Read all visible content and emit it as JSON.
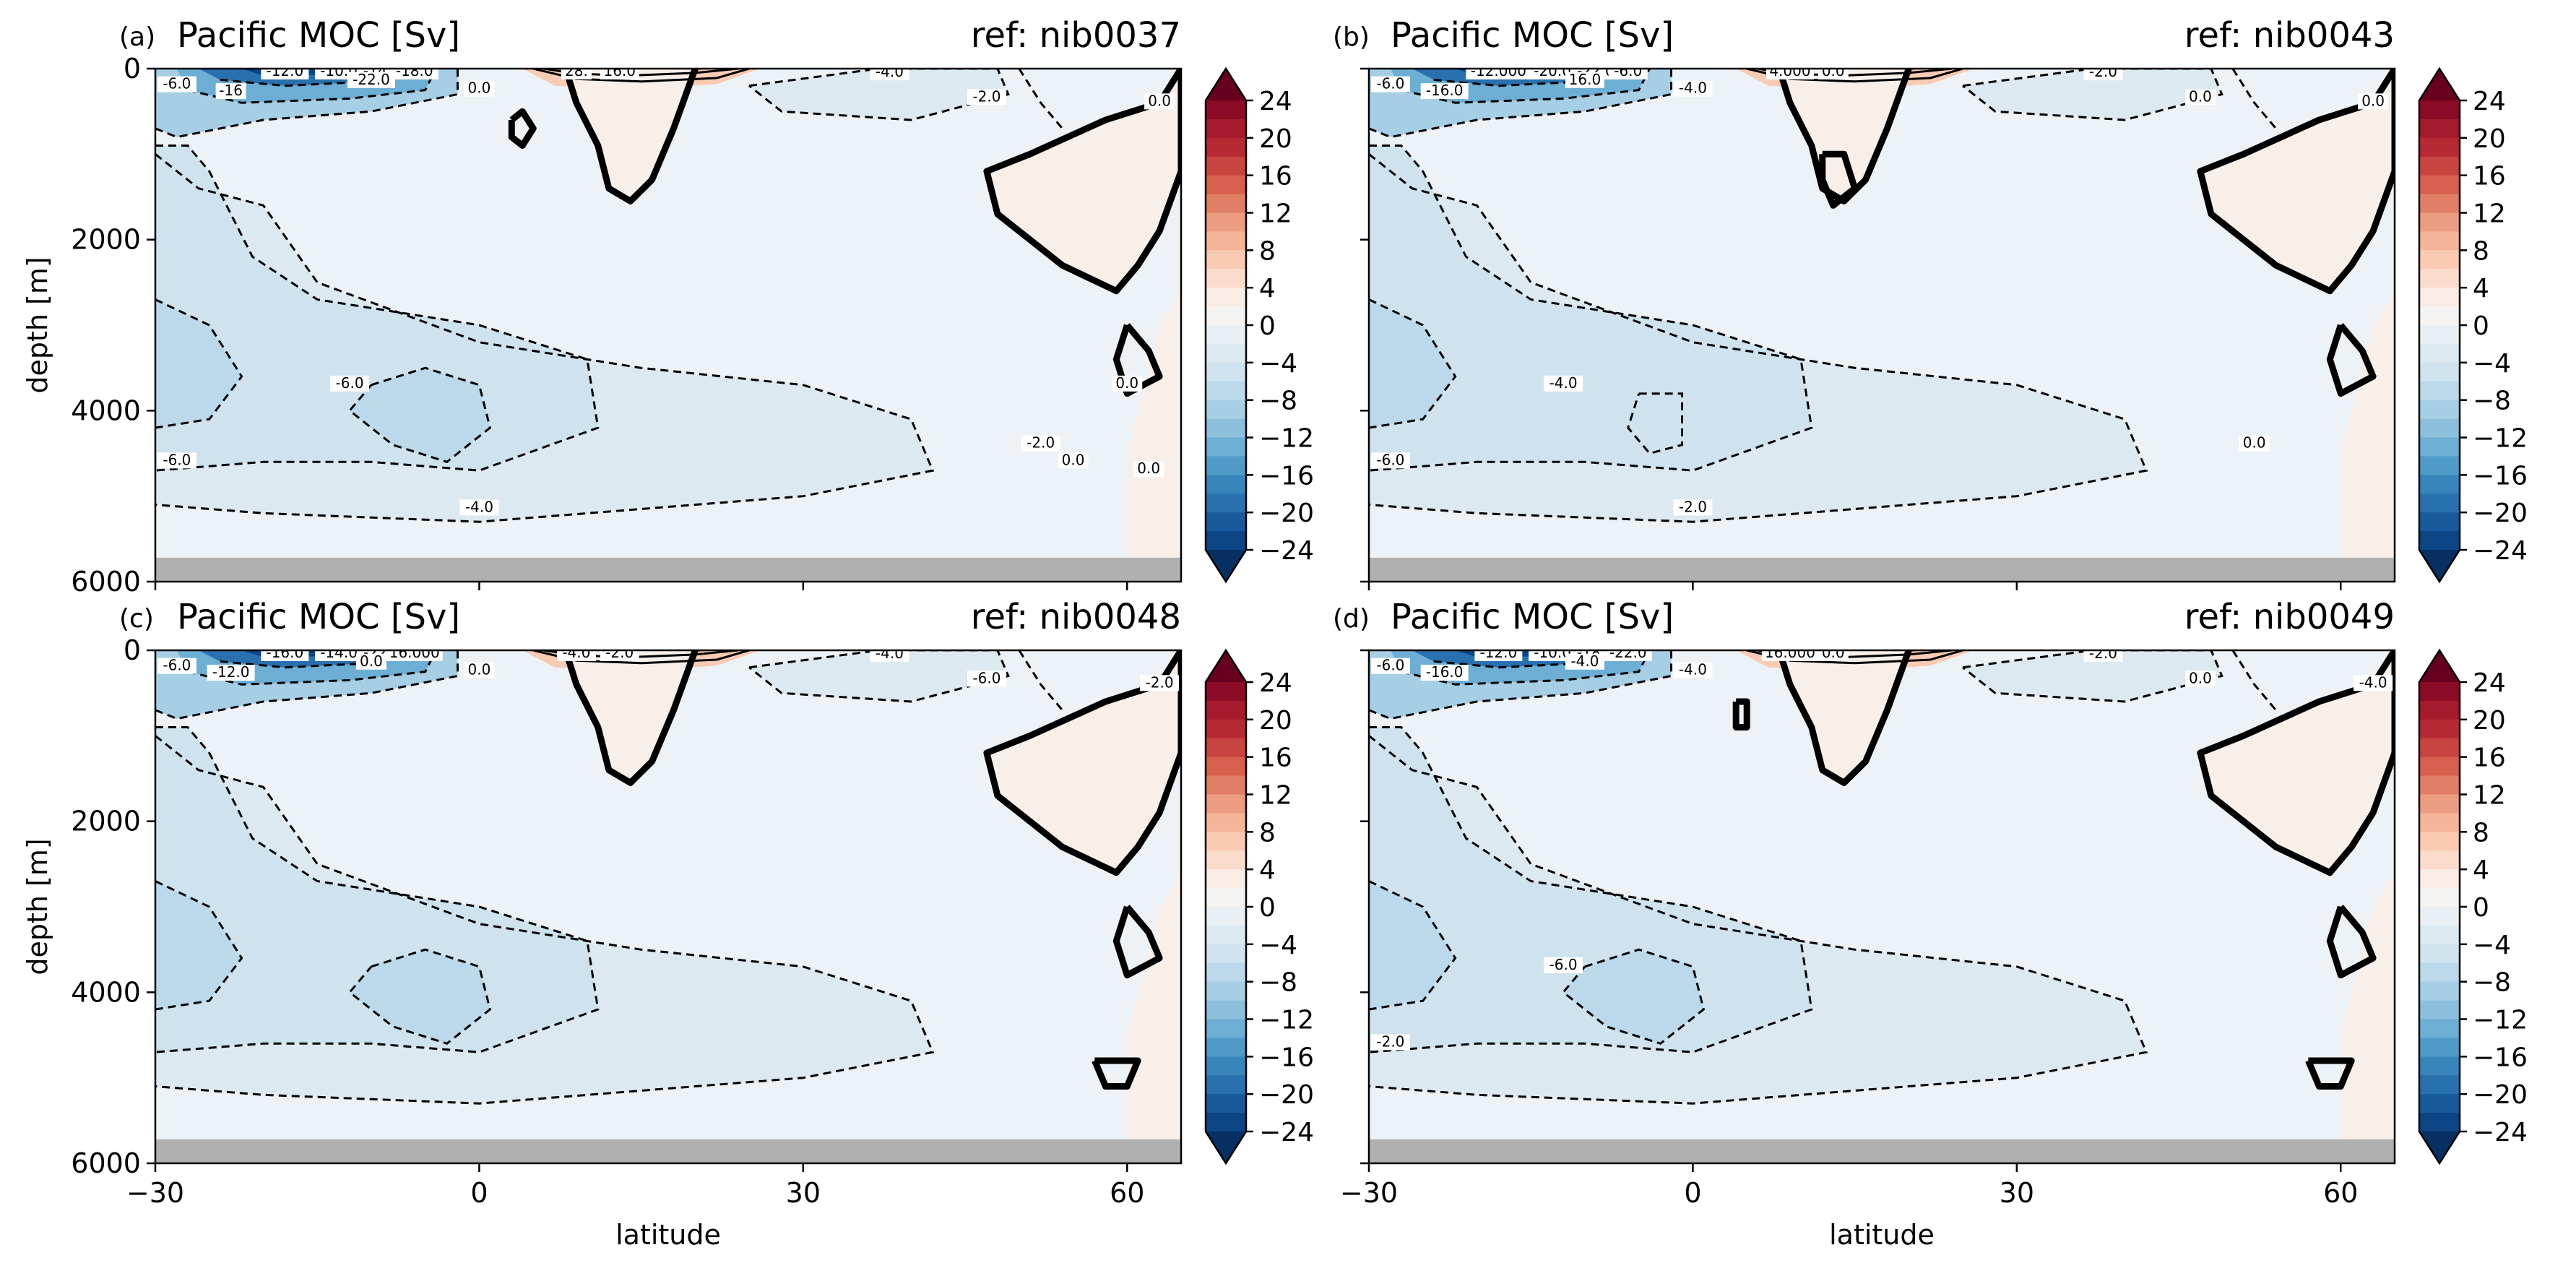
{
  "figure": {
    "panels": [
      {
        "letter": "(a)",
        "title": "Pacific MOC [Sv]",
        "ref": "ref: nib0037"
      },
      {
        "letter": "(b)",
        "title": "Pacific MOC [Sv]",
        "ref": "ref: nib0043"
      },
      {
        "letter": "(c)",
        "title": "Pacific MOC [Sv]",
        "ref": "ref: nib0048"
      },
      {
        "letter": "(d)",
        "title": "Pacific MOC [Sv]",
        "ref": "ref: nib0049"
      }
    ],
    "ylabel": "depth [m]",
    "xlabel": "latitude",
    "colors": {
      "land": "#f8efe9",
      "bottom_gray": "#b0b0b0",
      "contour_line": "#000000"
    }
  },
  "chart_data": {
    "type": "heatmap",
    "description_kind": "filled contour (meridional overturning streamfunction)",
    "xaxis": {
      "label": "latitude",
      "ticks": [
        -30,
        0,
        30,
        60
      ],
      "range": [
        -30,
        65
      ]
    },
    "yaxis": {
      "label": "depth [m]",
      "ticks": [
        0,
        2000,
        4000,
        6000
      ],
      "range": [
        6000,
        0
      ],
      "inverted": true
    },
    "colorbar": {
      "ticks": [
        24,
        20,
        16,
        12,
        8,
        4,
        0,
        -4,
        -8,
        -12,
        -16,
        -20,
        -24
      ],
      "levels_step": 2,
      "extend": "both",
      "colors": [
        "#67001f",
        "#8b0a26",
        "#a51a2c",
        "#b72a33",
        "#c7443f",
        "#d6604d",
        "#e17f66",
        "#ec9c80",
        "#f4b599",
        "#f9cbb2",
        "#fbdccb",
        "#f9ece4",
        "#f5f3f1",
        "#e9f0f4",
        "#dbe9f1",
        "#cfe3ee",
        "#bbd9ea",
        "#a6cee4",
        "#8cbfdc",
        "#6daed4",
        "#4f9bc7",
        "#3885bb",
        "#2870ae",
        "#185a9c",
        "#0b4583",
        "#053061"
      ]
    },
    "panels": [
      {
        "ref": "nib0037",
        "contour_labels": [
          "-6.0",
          "-16",
          "-12.0",
          "-10.0",
          "-14.0",
          "-18.0",
          "-22.0",
          "28.",
          "16.0",
          "0.0",
          "-4.0",
          "-2.0",
          "0.0",
          "-6.0",
          "-6.0",
          "-4.0",
          "-2.0",
          "0.0",
          "0.0",
          "0.0"
        ]
      },
      {
        "ref": "nib0043",
        "contour_labels": [
          "-6.0",
          "-16.0",
          "-12.000",
          "-20.0",
          "-22.0",
          "-6.0",
          "16.0",
          "4.000",
          "0.0",
          "-4.0",
          "-2.0",
          "0.0",
          "0.0",
          "-4.0",
          "-6.0",
          "-2.0",
          "0.0"
        ]
      },
      {
        "ref": "nib0048",
        "contour_labels": [
          "-6.0",
          "-12.0",
          "-16.0",
          "-14.0",
          "-22.0",
          "16.000",
          "0.0",
          "-4.0",
          "-2.0",
          "0.0",
          "-4.0",
          "-6.0",
          "-2.0"
        ]
      },
      {
        "ref": "nib0049",
        "contour_labels": [
          "-6.0",
          "-16.0",
          "-12.0",
          "-10.0",
          "-18.0",
          "-22.0",
          "-4.0",
          "16.000",
          "0.0",
          "-4.0",
          "-2.0",
          "0.0",
          "-4.0",
          "-6.0",
          "-2.0"
        ]
      }
    ]
  }
}
